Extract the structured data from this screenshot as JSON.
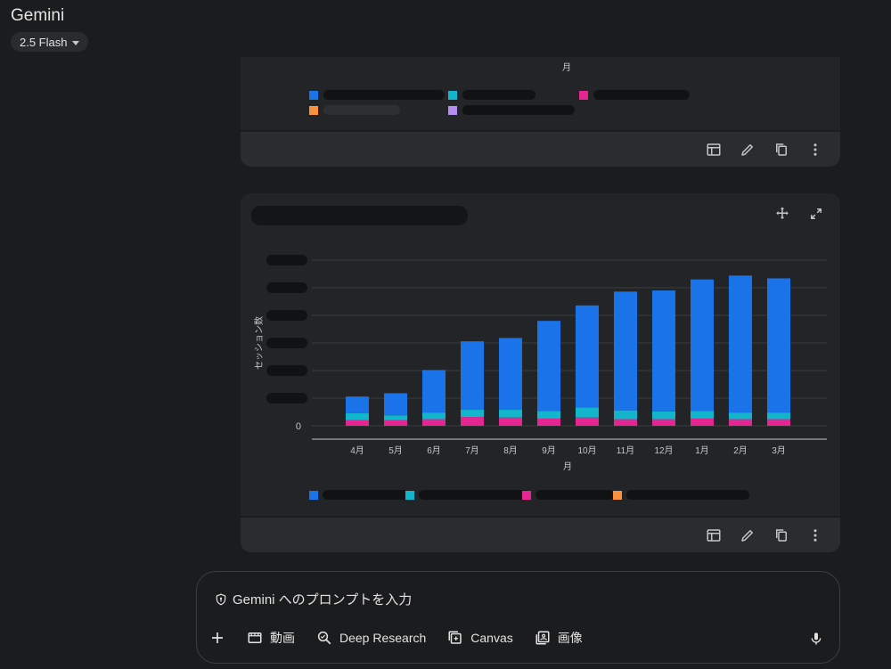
{
  "app": {
    "title": "Gemini",
    "model": "2.5 Flash"
  },
  "card1": {
    "x_axis_title": "月",
    "legend_colors": [
      "#1a73e8",
      "#12b5cb",
      "#e52592",
      "#fa903e",
      "#b58df1"
    ]
  },
  "card2": {
    "tools": {
      "expand_icon": "fullscreen-icon",
      "move_icon": "move-icon"
    }
  },
  "chart_data": {
    "type": "bar",
    "stacked": true,
    "categories": [
      "4月",
      "5月",
      "6月",
      "7月",
      "8月",
      "9月",
      "10月",
      "11月",
      "12月",
      "1月",
      "2月",
      "3月"
    ],
    "xlabel": "月",
    "ylabel": "セッション数",
    "ytick_visible": "0",
    "grid": true,
    "legend_position": "bottom",
    "series": [
      {
        "color": "#e52592",
        "values": [
          1.0,
          1.0,
          1.2,
          1.6,
          1.5,
          1.3,
          1.5,
          1.2,
          1.2,
          1.3,
          1.2,
          1.2
        ]
      },
      {
        "color": "#12b5cb",
        "values": [
          1.3,
          0.9,
          1.2,
          1.3,
          1.4,
          1.4,
          1.8,
          1.6,
          1.4,
          1.4,
          1.2,
          1.2
        ]
      },
      {
        "color": "#1a73e8",
        "values": [
          3.0,
          4.0,
          7.7,
          12.4,
          13.0,
          16.3,
          18.5,
          21.5,
          21.9,
          23.8,
          24.8,
          24.3
        ]
      },
      {
        "color": "#fa903e",
        "values": [
          0,
          0,
          0,
          0,
          0,
          0,
          0,
          0,
          0,
          0,
          0,
          0
        ]
      }
    ],
    "ylim": [
      0,
      30
    ]
  },
  "prompt": {
    "placeholder": "Gemini へのプロンプトを入力",
    "tools": [
      "動画",
      "Deep Research",
      "Canvas",
      "画像"
    ]
  }
}
